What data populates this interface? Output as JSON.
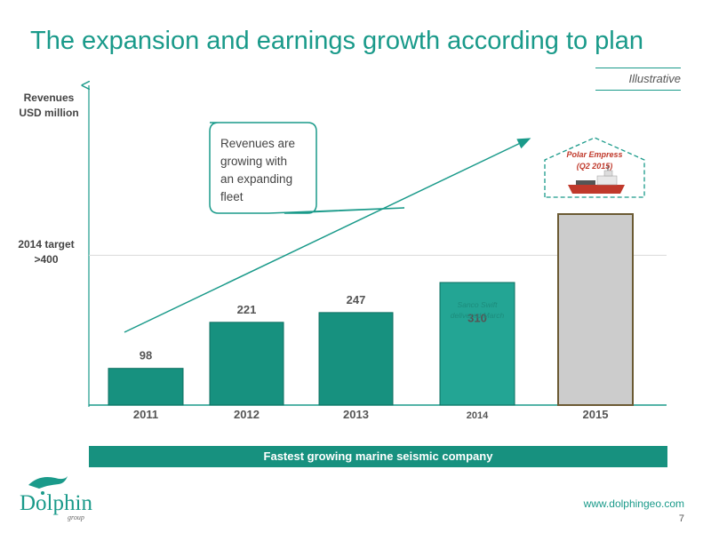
{
  "slide": {
    "title": "The expansion and earnings growth according to plan",
    "tag": "Illustrative",
    "footer_banner": "Fastest growing marine seismic company",
    "website": "www.dolphingeo.com",
    "page_number": "7",
    "logo_text": "Dolphin",
    "logo_subtext": "group"
  },
  "colors": {
    "title": "#1a9a8a",
    "bar_fill": "#17917f",
    "bar_stroke": "#0d6f60",
    "bar_2014_lower": "#23a594",
    "bar_2014_upper": "#d8f0ec",
    "bar_2015_fill": "#cccccc",
    "bar_2015_stroke": "#6b5a33",
    "ship_frame": "#1a9a8a",
    "ship_label": "#c0392b",
    "banner": "#17917f"
  },
  "chart_data": {
    "type": "bar",
    "ylabel": "Revenues USD million",
    "categories": [
      "2011",
      "2012",
      "2013",
      "2014",
      "2015"
    ],
    "values": [
      98,
      221,
      247,
      310,
      null
    ],
    "data_labels": [
      "98",
      "221",
      "247",
      "310",
      ""
    ],
    "reference_line": {
      "label_line1": "2014 target",
      "label_line2": ">400",
      "value": 400
    },
    "bar_2014_segment_label": "Sanco Swift delivered March",
    "callout": {
      "lines": [
        "Revenues are",
        "growing with",
        "an expanding",
        "fleet"
      ]
    },
    "ship": {
      "name": "Polar Empress",
      "note": "(Q2 2015)"
    }
  }
}
